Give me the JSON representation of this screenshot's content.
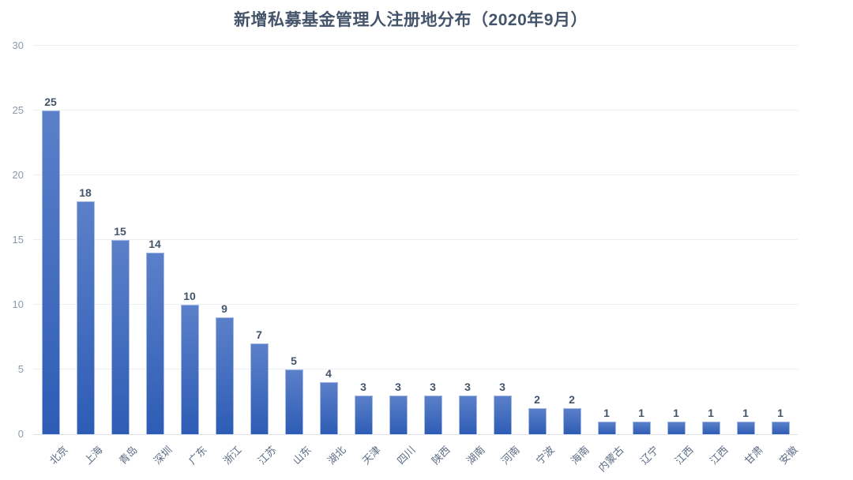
{
  "chart_data": {
    "type": "bar",
    "title": "新增私募基金管理人注册地分布（2020年9月）",
    "categories": [
      "北京",
      "上海",
      "青岛",
      "深圳",
      "广东",
      "浙江",
      "江苏",
      "山东",
      "湖北",
      "天津",
      "四川",
      "陕西",
      "湖南",
      "河南",
      "宁波",
      "海南",
      "内蒙古",
      "辽宁",
      "江西",
      "江西",
      "甘肃",
      "安徽"
    ],
    "values": [
      25,
      18,
      15,
      14,
      10,
      9,
      7,
      5,
      4,
      3,
      3,
      3,
      3,
      3,
      2,
      2,
      1,
      1,
      1,
      1,
      1,
      1
    ],
    "xlabel": "",
    "ylabel": "",
    "ylim": [
      0,
      30
    ],
    "yticks": [
      0,
      5,
      10,
      15,
      20,
      25,
      30
    ],
    "grid": true,
    "legend": false,
    "data_labels": true,
    "colors": {
      "bar_gradient_top": "#5b80c9",
      "bar_gradient_bottom": "#2e5cb5",
      "title": "#44546A",
      "data_label": "#44546A",
      "y_tick_label": "#8d99ad",
      "x_tick_label": "#5d6c85",
      "gridline": "#eceef3",
      "baseline": "#dde2ea",
      "background": "#ffffff"
    }
  }
}
